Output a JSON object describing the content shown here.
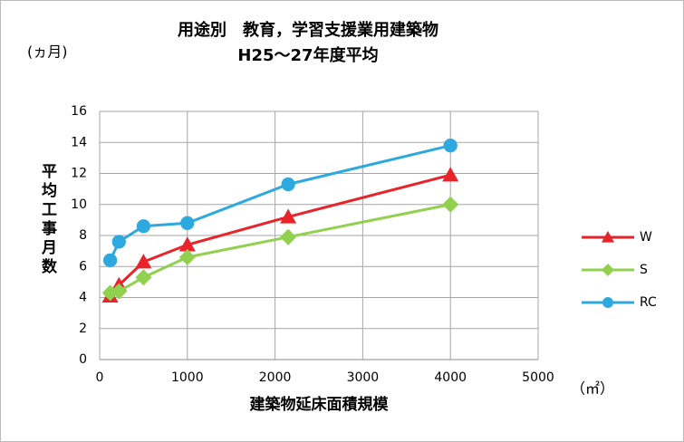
{
  "chart_data": {
    "type": "line",
    "title": "用途別　教育，学習支援業用建築物",
    "subtitle": "H25～27年度平均",
    "y_unit": "(ヵ月)",
    "y_label": "平均工事月数",
    "x_label": "建築物延床面積規模",
    "x_unit": "（㎡）",
    "x": [
      120,
      220,
      500,
      1000,
      2150,
      4000
    ],
    "series": [
      {
        "name": "W",
        "color": "#e8232a",
        "marker": "triangle",
        "values": [
          4.1,
          4.8,
          6.3,
          7.4,
          9.2,
          11.9
        ]
      },
      {
        "name": "S",
        "color": "#92d050",
        "marker": "diamond",
        "values": [
          4.3,
          4.4,
          5.3,
          6.6,
          7.9,
          10.0
        ]
      },
      {
        "name": "RC",
        "color": "#2ea9df",
        "marker": "circle",
        "values": [
          6.4,
          7.6,
          8.6,
          8.8,
          11.3,
          13.8
        ]
      }
    ],
    "xlim": [
      0,
      5000
    ],
    "xticks": [
      0,
      1000,
      2000,
      3000,
      4000,
      5000
    ],
    "ylim": [
      0,
      16
    ],
    "yticks": [
      0,
      2,
      4,
      6,
      8,
      10,
      12,
      14,
      16
    ],
    "grid": true,
    "legend": "right"
  }
}
